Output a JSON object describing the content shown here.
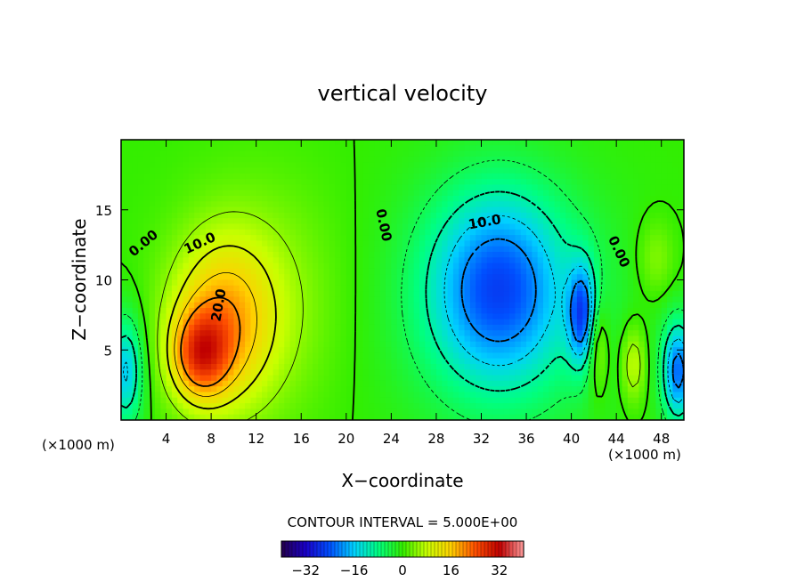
{
  "chart_data": {
    "type": "heatmap",
    "title": "vertical velocity",
    "xlabel": "X−coordinate",
    "ylabel": "Z−coordinate",
    "x_unit_left": "(×1000 m)",
    "x_unit_right": "(×1000 m)",
    "xlim": [
      0,
      50
    ],
    "ylim": [
      0,
      20
    ],
    "x_ticks": [
      4,
      8,
      12,
      16,
      20,
      24,
      28,
      32,
      36,
      40,
      44,
      48
    ],
    "y_ticks": [
      5,
      10,
      15
    ],
    "contour_interval_text": "CONTOUR INTERVAL = 5.000E+00",
    "colorbar": {
      "range": [
        -40,
        40
      ],
      "ticks": [
        -32,
        -16,
        0,
        16,
        32
      ],
      "tick_labels": [
        "−32",
        "−16",
        "0",
        "16",
        "32"
      ]
    },
    "contour_labels": [
      {
        "text": "0.00",
        "x": 2.0,
        "y": 12.6,
        "rotate": -40
      },
      {
        "text": "10.0",
        "x": 7.0,
        "y": 12.6,
        "rotate": -25
      },
      {
        "text": "20.0",
        "x": 8.7,
        "y": 8.2,
        "rotate": -80
      },
      {
        "text": "0.00",
        "x": 23.3,
        "y": 13.9,
        "rotate": 78
      },
      {
        "text": "10.0",
        "x": 32.3,
        "y": 14.1,
        "rotate": -10
      },
      {
        "text": "0.00",
        "x": 44.2,
        "y": 12.0,
        "rotate": 65
      }
    ],
    "features": [
      {
        "name": "updraft core",
        "x": 7.0,
        "z": 4.5,
        "w": 30
      },
      {
        "name": "downdraft core",
        "x": 34.0,
        "z": 9.5,
        "w": -22
      },
      {
        "name": "downdraft (narrow)",
        "x": 41.0,
        "z": 7.5,
        "w": -30
      },
      {
        "name": "downdraft (right edge)",
        "x": 49.3,
        "z": 3.5,
        "w": -25
      },
      {
        "name": "downdraft (left edge)",
        "x": 0.5,
        "z": 3.5,
        "w": -18
      }
    ]
  },
  "colors": {
    "background": "#ffffff",
    "zero": "#22dd00",
    "colormap": [
      "#24004a",
      "#1a00c8",
      "#0050ff",
      "#00d0ff",
      "#00ff80",
      "#33ee00",
      "#c8ff00",
      "#ffd000",
      "#ff5000",
      "#c00000",
      "#ff9a9a"
    ]
  }
}
